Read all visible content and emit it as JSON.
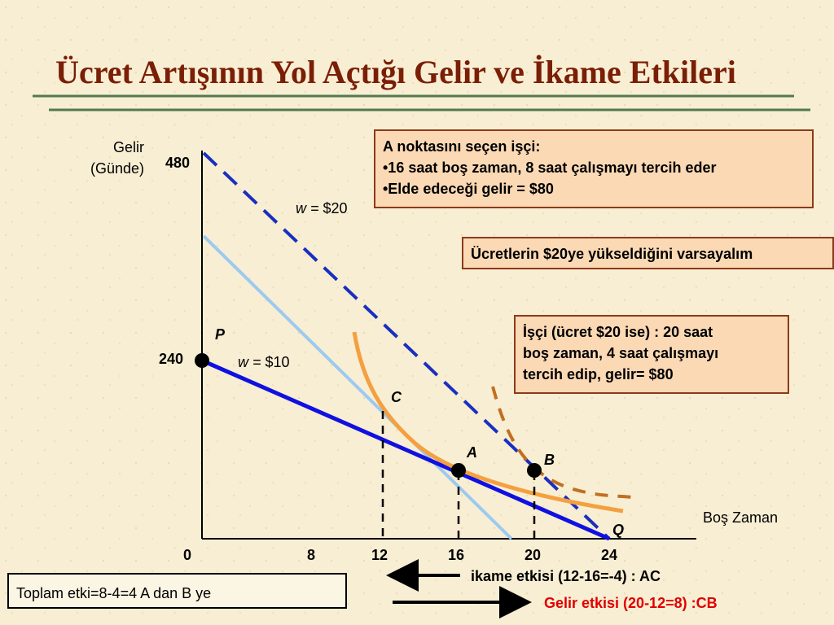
{
  "title": "Ücret Artışının Yol Açtığı Gelir ve İkame Etkileri",
  "axes": {
    "y_label": [
      "Gelir",
      "(Günde)"
    ],
    "x_label": "Boş Zaman",
    "y_ticks": [
      480,
      240
    ],
    "x_ticks": [
      0,
      8,
      12,
      16,
      20,
      24
    ]
  },
  "lines": [
    {
      "var": "w =",
      "value": "$20"
    },
    {
      "var": "w =",
      "value": "$10"
    }
  ],
  "points": [
    "P",
    "A",
    "B",
    "C",
    "Q"
  ],
  "boxes": {
    "choice_a": [
      "A noktasını seçen işçi:",
      "•16 saat boş zaman, 8 saat çalışmayı tercih eder",
      "•Elde edeceği gelir = $80"
    ],
    "assumption": "Ücretlerin $20ye yükseldiğini varsayalım",
    "choice_b": [
      "İşçi (ücret  $20 ise) :  20 saat",
      "boş zaman,  4 saat çalışmayı",
      "tercih edip, gelir= $80"
    ]
  },
  "effects": {
    "substitution": "ikame etkisi (12-16=-4) : AC",
    "income": "Gelir etkisi (20-12=8) :CB",
    "total": "Toplam etki=8-4=4 A dan B ye"
  }
}
